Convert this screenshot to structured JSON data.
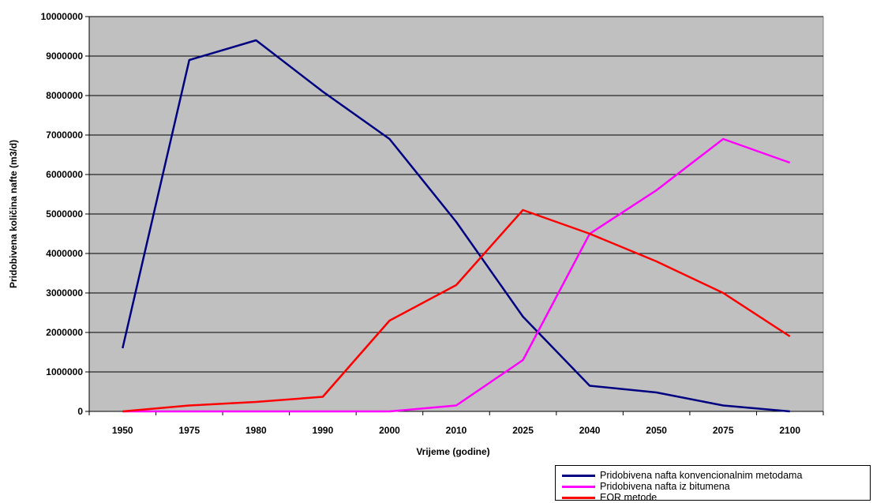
{
  "chart_data": {
    "type": "line",
    "xlabel": "Vrijeme (godine)",
    "ylabel": "Pridobivena količina nafte (m3/d)",
    "categories": [
      "1950",
      "1975",
      "1980",
      "1990",
      "2000",
      "2010",
      "2025",
      "2040",
      "2050",
      "2075",
      "2100"
    ],
    "ylim": [
      0,
      10000000
    ],
    "yticks": [
      0,
      1000000,
      2000000,
      3000000,
      4000000,
      5000000,
      6000000,
      7000000,
      8000000,
      9000000,
      10000000
    ],
    "grid": "horizontal",
    "legend_position": "bottom-right",
    "plot_background": "#c0c0c0",
    "series": [
      {
        "name": "Pridobivena nafta konvencionalnim metodama",
        "color": "#000080",
        "values": [
          1600000,
          8900000,
          9400000,
          8100000,
          6900000,
          4800000,
          2400000,
          650000,
          480000,
          150000,
          0
        ]
      },
      {
        "name": "Pridobivena nafta iz bitumena",
        "color": "#ff00ff",
        "values": [
          0,
          0,
          0,
          0,
          0,
          150000,
          1300000,
          4500000,
          5600000,
          6900000,
          6300000
        ]
      },
      {
        "name": "EOR metode",
        "color": "#ff0000",
        "values": [
          0,
          150000,
          240000,
          370000,
          2300000,
          3200000,
          5100000,
          4500000,
          3800000,
          3000000,
          1900000
        ]
      }
    ]
  }
}
